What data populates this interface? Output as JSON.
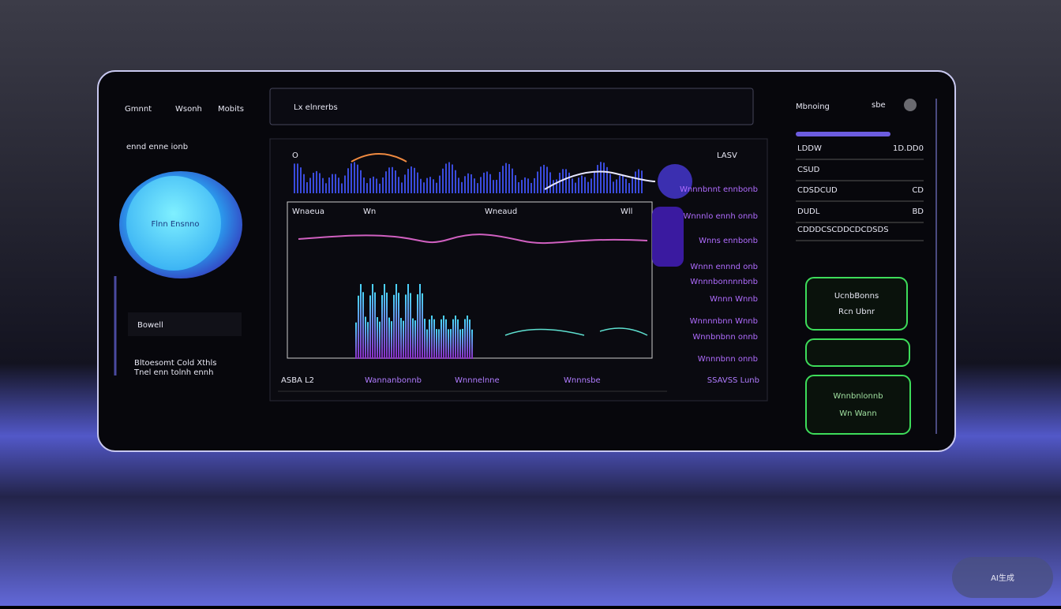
{
  "nav": [
    "Gmnnt",
    "Wsonh",
    "Mobits"
  ],
  "left": {
    "caption": "ennd enne ionb",
    "orb_label": "Flnn Ensnno",
    "field": "Bowell",
    "line1": "Bltoesomt Cold Xthls",
    "line2": "Tnel enn tolnh ennh"
  },
  "header": {
    "title": "Lx elnrerbs"
  },
  "chart": {
    "corner": "O",
    "tag": "LASV",
    "legend": [
      "Wnaeua",
      "Wn",
      "Wneaud",
      "Wll"
    ],
    "side_labels": [
      "Wnnnbnnt ennbonb",
      "Wnnnlo ennh onnb",
      "Wnns ennbonb",
      "Wnnn ennnd onb",
      "Wnnnbonnnnbnb",
      "Wnnn Wnnb",
      "Wnnnnbnn Wnnb",
      "Wnnbnbnn onnb",
      "Wnnnbnn onnb"
    ],
    "footer": [
      "ASBA L2",
      "Wannanbonnb",
      "Wnnnelnne",
      "Wnnnsbe",
      "SSAVSS Lunb"
    ]
  },
  "right": {
    "brand": "Mbnoing",
    "meta": "sbe",
    "rows": [
      [
        "LDDW",
        "1D.DD0"
      ],
      [
        "CSUD",
        ""
      ],
      [
        "CDSDCUD",
        "CD"
      ],
      [
        "DUDL",
        "BD"
      ],
      [
        "CDDDCSCDDCDCDSDS",
        ""
      ]
    ],
    "buttons": [
      [
        "UcnbBonns",
        "Rcn Ubnr"
      ],
      [
        "Wnnbnlonnb",
        "Wn Wann"
      ]
    ]
  },
  "watermark": "AI生成"
}
